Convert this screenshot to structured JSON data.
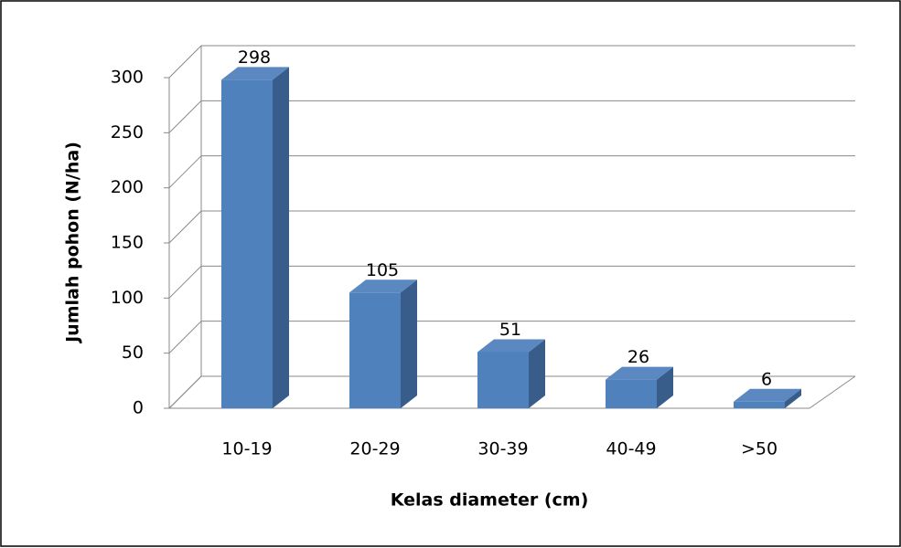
{
  "chart_data": {
    "type": "bar3d",
    "x_label": "Kelas diameter (cm)",
    "y_label": "Jumlah pohon (N/ha)",
    "categories": [
      "10-19",
      "20-29",
      "30-39",
      "40-49",
      ">50"
    ],
    "values": [
      298,
      105,
      51,
      26,
      6
    ],
    "color": "#4f81bd",
    "ylim": [
      0,
      300
    ],
    "yticks": [
      0,
      50,
      100,
      150,
      200,
      250,
      300
    ],
    "grid": true
  }
}
